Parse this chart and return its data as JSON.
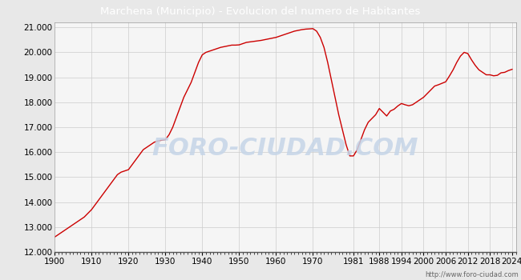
{
  "title": "Marchena (Municipio) - Evolucion del numero de Habitantes",
  "title_bg_color": "#4a86d0",
  "title_text_color": "#ffffff",
  "line_color": "#cc0000",
  "bg_color": "#e8e8e8",
  "plot_bg_color": "#f5f5f5",
  "grid_color": "#cccccc",
  "watermark_text": "FORO-CIUDAD.COM",
  "watermark_color": "#c5d5e8",
  "url_text": "http://www.foro-ciudad.com",
  "ylim": [
    12000,
    21200
  ],
  "yticks": [
    12000,
    13000,
    14000,
    15000,
    16000,
    17000,
    18000,
    19000,
    20000,
    21000
  ],
  "xtick_labels": [
    "1900",
    "1910",
    "1920",
    "1930",
    "1940",
    "1950",
    "1960",
    "1970",
    "1981",
    "1988",
    "1994",
    "2000",
    "2006",
    "2012",
    "2018",
    "2024"
  ],
  "years": [
    1900,
    1901,
    1902,
    1903,
    1904,
    1905,
    1906,
    1907,
    1908,
    1909,
    1910,
    1911,
    1912,
    1913,
    1914,
    1915,
    1916,
    1917,
    1918,
    1919,
    1920,
    1921,
    1922,
    1923,
    1924,
    1925,
    1926,
    1927,
    1928,
    1929,
    1930,
    1931,
    1932,
    1933,
    1934,
    1935,
    1936,
    1937,
    1938,
    1939,
    1940,
    1941,
    1942,
    1943,
    1944,
    1945,
    1946,
    1947,
    1948,
    1949,
    1950,
    1951,
    1952,
    1953,
    1954,
    1955,
    1956,
    1957,
    1958,
    1959,
    1960,
    1961,
    1962,
    1963,
    1964,
    1965,
    1966,
    1967,
    1968,
    1969,
    1970,
    1971,
    1972,
    1973,
    1974,
    1975,
    1976,
    1977,
    1978,
    1979,
    1980,
    1981,
    1982,
    1983,
    1984,
    1985,
    1986,
    1987,
    1988,
    1989,
    1990,
    1991,
    1992,
    1993,
    1994,
    1995,
    1996,
    1997,
    1998,
    1999,
    2000,
    2001,
    2002,
    2003,
    2004,
    2005,
    2006,
    2007,
    2008,
    2009,
    2010,
    2011,
    2012,
    2013,
    2014,
    2015,
    2016,
    2017,
    2018,
    2019,
    2020,
    2021,
    2022,
    2023,
    2024
  ],
  "population": [
    12600,
    12700,
    12800,
    12900,
    13000,
    13100,
    13200,
    13300,
    13400,
    13550,
    13700,
    13900,
    14100,
    14300,
    14500,
    14700,
    14900,
    15100,
    15200,
    15250,
    15300,
    15500,
    15700,
    15900,
    16100,
    16200,
    16300,
    16400,
    16450,
    16480,
    16500,
    16700,
    17000,
    17400,
    17800,
    18200,
    18500,
    18800,
    19200,
    19600,
    19900,
    20000,
    20050,
    20100,
    20150,
    20200,
    20230,
    20260,
    20290,
    20290,
    20300,
    20350,
    20400,
    20420,
    20440,
    20460,
    20480,
    20510,
    20540,
    20570,
    20600,
    20650,
    20700,
    20750,
    20800,
    20850,
    20880,
    20910,
    20930,
    20940,
    20950,
    20850,
    20600,
    20200,
    19600,
    18900,
    18200,
    17500,
    16900,
    16300,
    15850,
    15850,
    16100,
    16500,
    16900,
    17200,
    17350,
    17500,
    17750,
    17600,
    17450,
    17650,
    17720,
    17850,
    17950,
    17900,
    17860,
    17900,
    18000,
    18100,
    18200,
    18350,
    18500,
    18650,
    18700,
    18760,
    18820,
    19050,
    19300,
    19600,
    19850,
    20000,
    19950,
    19700,
    19480,
    19300,
    19200,
    19100,
    19100,
    19060,
    19080,
    19180,
    19200,
    19270,
    19320
  ]
}
